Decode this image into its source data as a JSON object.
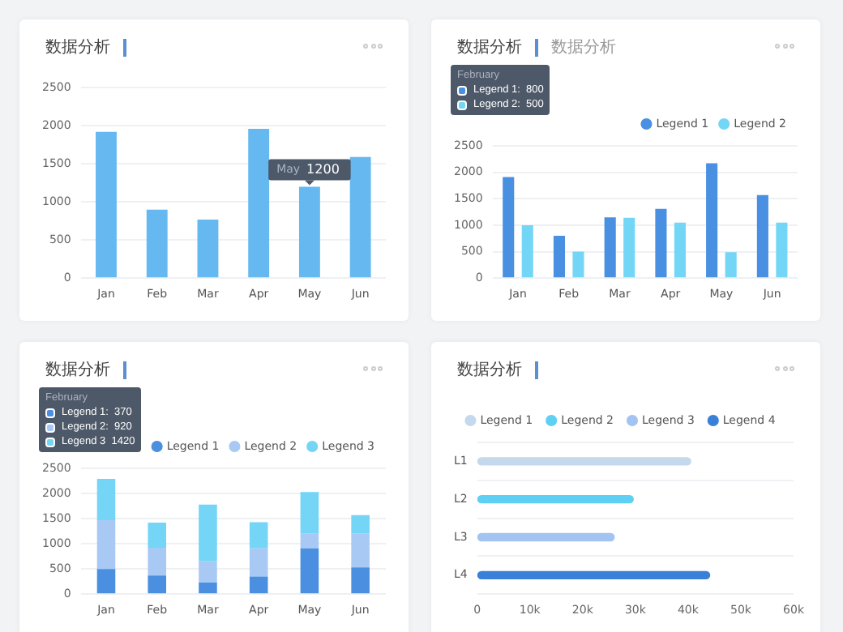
{
  "chart_data": [
    {
      "type": "bar",
      "title": "数据分析",
      "categories": [
        "Jan",
        "Feb",
        "Mar",
        "Apr",
        "May",
        "Jun"
      ],
      "values": [
        1920,
        900,
        770,
        1960,
        1200,
        1590
      ],
      "color": "#66b8f0",
      "value_labels": [
        null,
        null,
        null,
        null,
        "1200",
        null
      ],
      "annotations": [
        {
          "text": "May",
          "x": "May",
          "y": 1200
        }
      ],
      "ylim": [
        0,
        2500
      ],
      "yticks": [
        0,
        500,
        1000,
        1500,
        2000,
        2500
      ],
      "grid": "y",
      "legend": false
    },
    {
      "type": "bar",
      "title": "数据分析",
      "subtitle": "数据分析",
      "categories": [
        "Jan",
        "Feb",
        "Mar",
        "Apr",
        "May",
        "Jun"
      ],
      "series": [
        {
          "name": "Legend 1",
          "color": "#4a90e2",
          "values": [
            1910,
            800,
            1150,
            1310,
            2170,
            1570
          ]
        },
        {
          "name": "Legend 2",
          "color": "#74d6f7",
          "values": [
            1000,
            500,
            1140,
            1050,
            490,
            1050
          ]
        }
      ],
      "annotations": [
        "February",
        "Legend 1:  800",
        "Legend 2:  500"
      ],
      "ylim": [
        0,
        2500
      ],
      "yticks": [
        0,
        500,
        1000,
        1500,
        2000,
        2500
      ],
      "grid": "y",
      "legend": "top right"
    },
    {
      "type": "bar",
      "title": "数据分析",
      "stacked": true,
      "categories": [
        "Jan",
        "Feb",
        "Mar",
        "Apr",
        "May",
        "Jun"
      ],
      "series": [
        {
          "name": "Legend 1",
          "color": "#4a8fe0",
          "values": [
            500,
            370,
            230,
            350,
            910,
            530
          ]
        },
        {
          "name": "Legend 2",
          "color": "#a9c9f5",
          "values": [
            970,
            550,
            420,
            560,
            290,
            670
          ]
        },
        {
          "name": "Legend 3",
          "color": "#74d5f6",
          "values": [
            820,
            500,
            1130,
            520,
            830,
            370
          ]
        }
      ],
      "annotations": [
        "February",
        "Legend 1:  370",
        "Legend 2:  920",
        "Legend 3  1420"
      ],
      "ylim": [
        0,
        2500
      ],
      "yticks": [
        0,
        500,
        1000,
        1500,
        2000,
        2500
      ],
      "grid": "y",
      "legend": "top right"
    },
    {
      "type": "bar",
      "title": "数据分析",
      "orientation": "horizontal",
      "categories": [
        "L1",
        "L2",
        "L3",
        "L4"
      ],
      "series": [
        {
          "name": "Legend 1",
          "color": "#c5d9ee",
          "values": [
            40600,
            null,
            null,
            null
          ]
        },
        {
          "name": "Legend 2",
          "color": "#5ed0f3",
          "values": [
            null,
            29700,
            null,
            null
          ]
        },
        {
          "name": "Legend 3",
          "color": "#a3c4f3",
          "values": [
            null,
            null,
            26100,
            null
          ]
        },
        {
          "name": "Legend 4",
          "color": "#3a7fd8",
          "values": [
            null,
            null,
            null,
            44200
          ]
        }
      ],
      "xlim": [
        0,
        60000
      ],
      "xticks": [
        0,
        {
          "value": 10000,
          "label": "10k"
        },
        {
          "value": 20000,
          "label": "20k"
        },
        {
          "value": 30000,
          "label": "30k"
        },
        {
          "value": 40000,
          "label": "40k"
        },
        {
          "value": 50000,
          "label": "50k"
        },
        {
          "value": 60000,
          "label": "60k"
        }
      ],
      "grid": "y",
      "legend": "top"
    }
  ]
}
